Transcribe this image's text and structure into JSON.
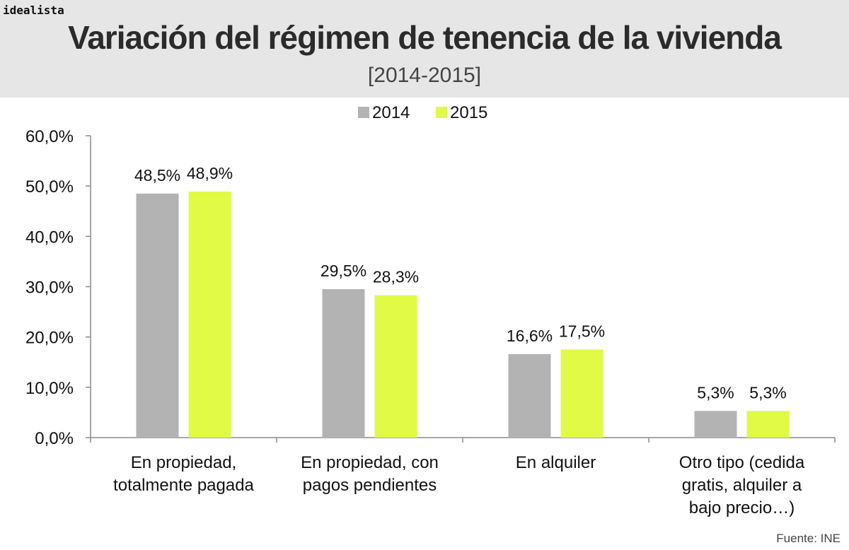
{
  "brand": "idealista",
  "title": "Variación del régimen de tenencia de la vivienda",
  "subtitle": "[2014-2015]",
  "source": "Fuente: INE",
  "colors": {
    "s2014": "#b3b3b3",
    "s2015": "#e0fa46",
    "axis": "#8c8c8c"
  },
  "chart_data": {
    "type": "bar",
    "categories": [
      [
        "En propiedad,",
        "totalmente pagada"
      ],
      [
        "En propiedad, con",
        "pagos pendientes"
      ],
      [
        "En alquiler"
      ],
      [
        "Otro tipo (cedida",
        "gratis, alquiler a",
        "bajo precio…)"
      ]
    ],
    "series": [
      {
        "name": "2014",
        "values": [
          48.5,
          29.5,
          16.6,
          5.3
        ],
        "labels": [
          "48,5%",
          "29,5%",
          "16,6%",
          "5,3%"
        ]
      },
      {
        "name": "2015",
        "values": [
          48.9,
          28.3,
          17.5,
          5.3
        ],
        "labels": [
          "48,9%",
          "28,3%",
          "17,5%",
          "5,3%"
        ]
      }
    ],
    "yticks": [
      0,
      10,
      20,
      30,
      40,
      50,
      60
    ],
    "ytick_labels": [
      "0,0%",
      "10,0%",
      "20,0%",
      "30,0%",
      "40,0%",
      "50,0%",
      "60,0%"
    ],
    "ylim": [
      0,
      60
    ],
    "legend": "top-center",
    "grid": false
  }
}
